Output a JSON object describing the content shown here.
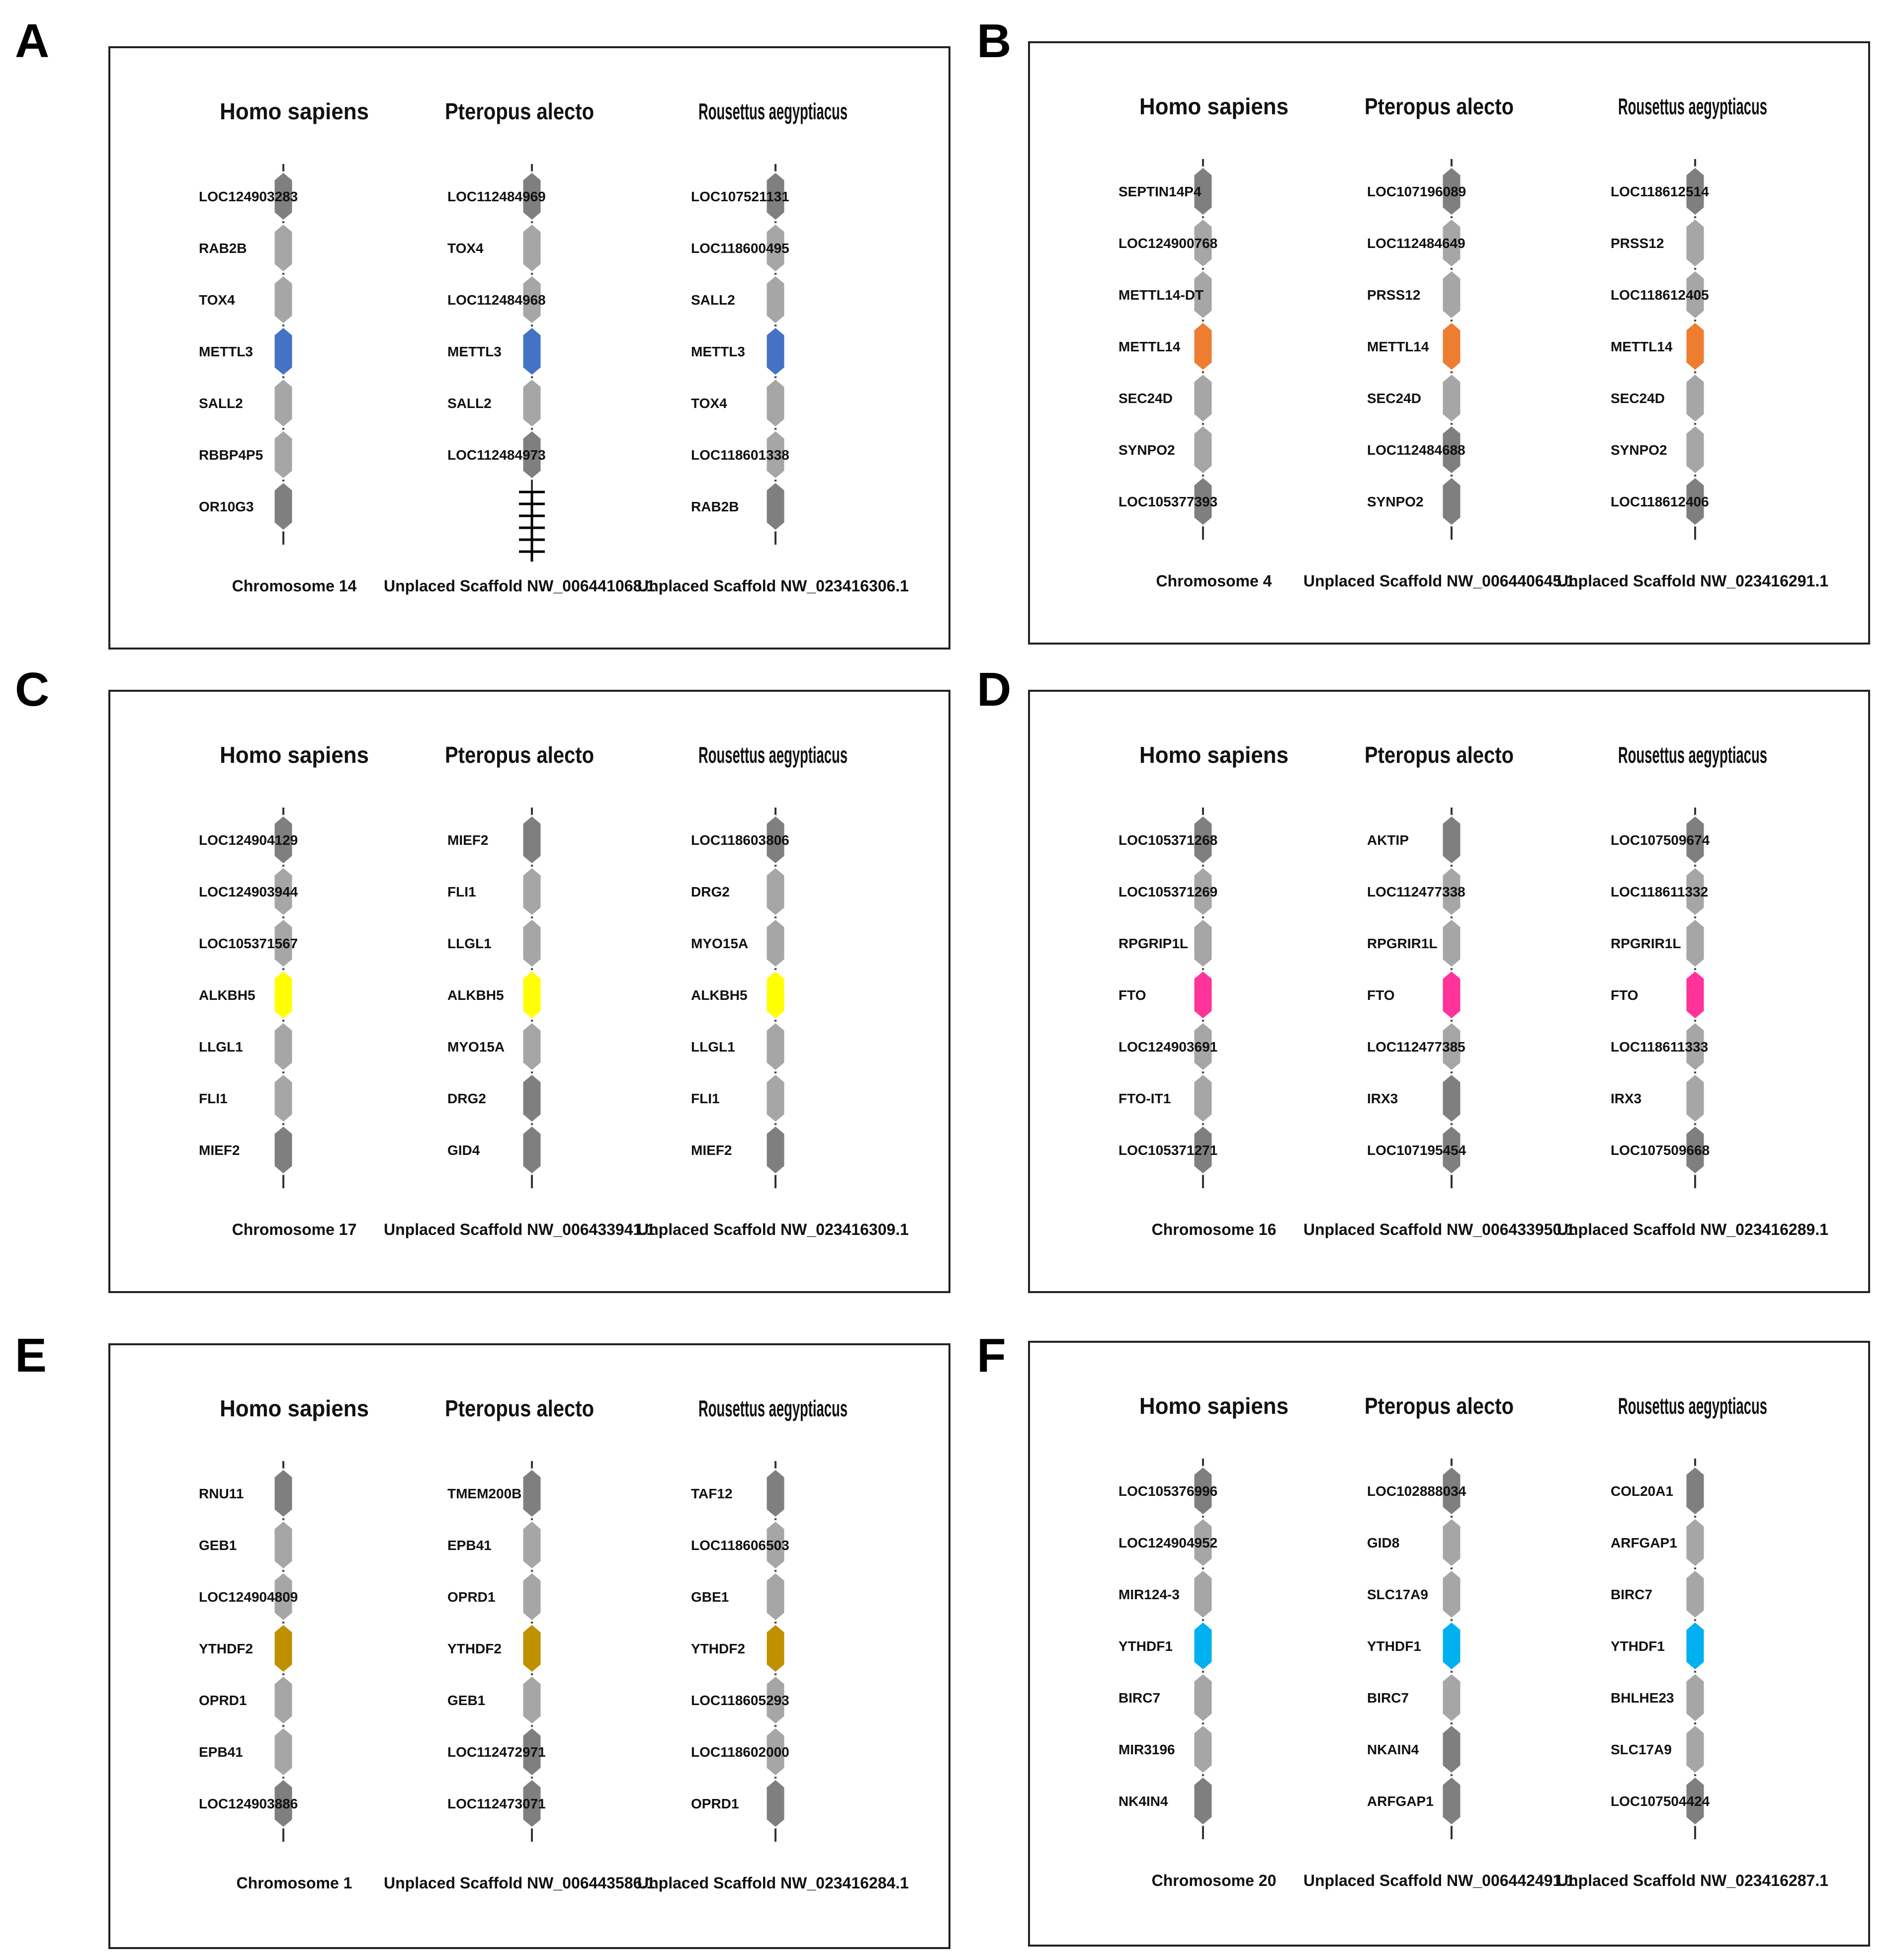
{
  "panels": [
    {
      "letter": "A",
      "color": "#4472c4",
      "columns": [
        {
          "species": "Homo sapiens",
          "location": "Chromosome 14",
          "genes": [
            {
              "name": "LOC124903283",
              "shade": "dark"
            },
            {
              "name": "RAB2B",
              "shade": "light"
            },
            {
              "name": "TOX4",
              "shade": "light"
            },
            {
              "name": "METTL3",
              "shade": "target"
            },
            {
              "name": "SALL2",
              "shade": "light"
            },
            {
              "name": "RBBP4P5",
              "shade": "light"
            },
            {
              "name": "OR10G3",
              "shade": "dark"
            }
          ]
        },
        {
          "species": "Pteropus alecto",
          "location": "Unplaced Scaffold NW_006441068.1",
          "scaffold_end": true,
          "genes": [
            {
              "name": "LOC112484969",
              "shade": "dark"
            },
            {
              "name": "TOX4",
              "shade": "light"
            },
            {
              "name": "LOC112484968",
              "shade": "light"
            },
            {
              "name": "METTL3",
              "shade": "target"
            },
            {
              "name": "SALL2",
              "shade": "light"
            },
            {
              "name": "LOC112484973",
              "shade": "dark"
            }
          ]
        },
        {
          "species": "Rousettus aegyptiacus",
          "location": "Unplaced Scaffold NW_023416306.1",
          "genes": [
            {
              "name": "LOC107521131",
              "shade": "dark"
            },
            {
              "name": "LOC118600495",
              "shade": "light"
            },
            {
              "name": "SALL2",
              "shade": "light"
            },
            {
              "name": "METTL3",
              "shade": "target"
            },
            {
              "name": "TOX4",
              "shade": "light"
            },
            {
              "name": "LOC118601338",
              "shade": "light"
            },
            {
              "name": "RAB2B",
              "shade": "dark"
            }
          ]
        }
      ]
    },
    {
      "letter": "B",
      "color": "#ed7d31",
      "columns": [
        {
          "species": "Homo sapiens",
          "location": "Chromosome 4",
          "genes": [
            {
              "name": "SEPTIN14P4",
              "shade": "dark"
            },
            {
              "name": "LOC124900768",
              "shade": "light"
            },
            {
              "name": "METTL14-DT",
              "shade": "light"
            },
            {
              "name": "METTL14",
              "shade": "target"
            },
            {
              "name": "SEC24D",
              "shade": "light"
            },
            {
              "name": "SYNPO2",
              "shade": "light"
            },
            {
              "name": "LOC105377393",
              "shade": "dark"
            }
          ]
        },
        {
          "species": "Pteropus alecto",
          "location": "Unplaced Scaffold NW_006440645.1",
          "genes": [
            {
              "name": "LOC107196089",
              "shade": "dark"
            },
            {
              "name": "LOC112484649",
              "shade": "light"
            },
            {
              "name": "PRSS12",
              "shade": "light"
            },
            {
              "name": "METTL14",
              "shade": "target"
            },
            {
              "name": "SEC24D",
              "shade": "light"
            },
            {
              "name": "LOC112484688",
              "shade": "dark"
            },
            {
              "name": "SYNPO2",
              "shade": "dark"
            }
          ]
        },
        {
          "species": "Rousettus aegyptiacus",
          "location": "Unplaced Scaffold NW_023416291.1",
          "genes": [
            {
              "name": "LOC118612514",
              "shade": "dark"
            },
            {
              "name": "PRSS12",
              "shade": "light"
            },
            {
              "name": "LOC118612405",
              "shade": "light"
            },
            {
              "name": "METTL14",
              "shade": "target"
            },
            {
              "name": "SEC24D",
              "shade": "light"
            },
            {
              "name": "SYNPO2",
              "shade": "light"
            },
            {
              "name": "LOC118612406",
              "shade": "dark"
            }
          ]
        }
      ]
    },
    {
      "letter": "C",
      "color": "#ffff00",
      "columns": [
        {
          "species": "Homo sapiens",
          "location": "Chromosome 17",
          "genes": [
            {
              "name": "LOC124904129",
              "shade": "dark"
            },
            {
              "name": "LOC124903944",
              "shade": "light"
            },
            {
              "name": "LOC105371567",
              "shade": "light"
            },
            {
              "name": "ALKBH5",
              "shade": "target"
            },
            {
              "name": "LLGL1",
              "shade": "light"
            },
            {
              "name": "FLI1",
              "shade": "light"
            },
            {
              "name": "MIEF2",
              "shade": "dark"
            }
          ]
        },
        {
          "species": "Pteropus alecto",
          "location": "Unplaced Scaffold NW_006433941.1",
          "genes": [
            {
              "name": "MIEF2",
              "shade": "dark"
            },
            {
              "name": "FLI1",
              "shade": "light"
            },
            {
              "name": "LLGL1",
              "shade": "light"
            },
            {
              "name": "ALKBH5",
              "shade": "target"
            },
            {
              "name": "MYO15A",
              "shade": "light"
            },
            {
              "name": "DRG2",
              "shade": "dark"
            },
            {
              "name": "GID4",
              "shade": "dark"
            }
          ]
        },
        {
          "species": "Rousettus aegyptiacus",
          "location": "Unplaced Scaffold NW_023416309.1",
          "genes": [
            {
              "name": "LOC118603806",
              "shade": "dark"
            },
            {
              "name": "DRG2",
              "shade": "light"
            },
            {
              "name": "MYO15A",
              "shade": "light"
            },
            {
              "name": "ALKBH5",
              "shade": "target"
            },
            {
              "name": "LLGL1",
              "shade": "light"
            },
            {
              "name": "FLI1",
              "shade": "light"
            },
            {
              "name": "MIEF2",
              "shade": "dark"
            }
          ]
        }
      ]
    },
    {
      "letter": "D",
      "color": "#ff3399",
      "columns": [
        {
          "species": "Homo sapiens",
          "location": "Chromosome 16",
          "genes": [
            {
              "name": "LOC105371268",
              "shade": "dark"
            },
            {
              "name": "LOC105371269",
              "shade": "light"
            },
            {
              "name": "RPGRIP1L",
              "shade": "light"
            },
            {
              "name": "FTO",
              "shade": "target"
            },
            {
              "name": "LOC124903691",
              "shade": "light"
            },
            {
              "name": "FTO-IT1",
              "shade": "light"
            },
            {
              "name": "LOC105371271",
              "shade": "dark"
            }
          ]
        },
        {
          "species": "Pteropus alecto",
          "location": "Unplaced Scaffold NW_006433950.1",
          "genes": [
            {
              "name": "AKTIP",
              "shade": "dark"
            },
            {
              "name": "LOC112477338",
              "shade": "light"
            },
            {
              "name": "RPGRIR1L",
              "shade": "light"
            },
            {
              "name": "FTO",
              "shade": "target"
            },
            {
              "name": "LOC112477385",
              "shade": "light"
            },
            {
              "name": "IRX3",
              "shade": "dark"
            },
            {
              "name": "LOC107195454",
              "shade": "dark"
            }
          ]
        },
        {
          "species": "Rousettus aegyptiacus",
          "location": "Unplaced Scaffold NW_023416289.1",
          "genes": [
            {
              "name": "LOC107509674",
              "shade": "dark"
            },
            {
              "name": "LOC118611332",
              "shade": "light"
            },
            {
              "name": "RPGRIR1L",
              "shade": "light"
            },
            {
              "name": "FTO",
              "shade": "target"
            },
            {
              "name": "LOC118611333",
              "shade": "light"
            },
            {
              "name": "IRX3",
              "shade": "light"
            },
            {
              "name": "LOC107509668",
              "shade": "dark"
            }
          ]
        }
      ]
    },
    {
      "letter": "E",
      "color": "#bf9000",
      "columns": [
        {
          "species": "Homo sapiens",
          "location": "Chromosome 1",
          "genes": [
            {
              "name": "RNU11",
              "shade": "dark"
            },
            {
              "name": "GEB1",
              "shade": "light"
            },
            {
              "name": "LOC124904809",
              "shade": "light"
            },
            {
              "name": "YTHDF2",
              "shade": "target"
            },
            {
              "name": "OPRD1",
              "shade": "light"
            },
            {
              "name": "EPB41",
              "shade": "light"
            },
            {
              "name": "LOC124903886",
              "shade": "dark"
            }
          ]
        },
        {
          "species": "Pteropus alecto",
          "location": "Unplaced Scaffold NW_006443586.1",
          "genes": [
            {
              "name": "TMEM200B",
              "shade": "dark"
            },
            {
              "name": "EPB41",
              "shade": "light"
            },
            {
              "name": "OPRD1",
              "shade": "light"
            },
            {
              "name": "YTHDF2",
              "shade": "target"
            },
            {
              "name": "GEB1",
              "shade": "light"
            },
            {
              "name": "LOC112472971",
              "shade": "dark"
            },
            {
              "name": "LOC112473071",
              "shade": "dark"
            }
          ]
        },
        {
          "species": "Rousettus aegyptiacus",
          "location": "Unplaced Scaffold NW_023416284.1",
          "genes": [
            {
              "name": "TAF12",
              "shade": "dark"
            },
            {
              "name": "LOC118606503",
              "shade": "light"
            },
            {
              "name": "GBE1",
              "shade": "light"
            },
            {
              "name": "YTHDF2",
              "shade": "target"
            },
            {
              "name": "LOC118605293",
              "shade": "light"
            },
            {
              "name": "LOC118602000",
              "shade": "light"
            },
            {
              "name": "OPRD1",
              "shade": "dark"
            }
          ]
        }
      ]
    },
    {
      "letter": "F",
      "color": "#00b0f0",
      "columns": [
        {
          "species": "Homo sapiens",
          "location": "Chromosome 20",
          "genes": [
            {
              "name": "LOC105376996",
              "shade": "dark"
            },
            {
              "name": "LOC124904952",
              "shade": "light"
            },
            {
              "name": "MIR124-3",
              "shade": "light"
            },
            {
              "name": "YTHDF1",
              "shade": "target"
            },
            {
              "name": "BIRC7",
              "shade": "light"
            },
            {
              "name": "MIR3196",
              "shade": "light"
            },
            {
              "name": "NK4IN4",
              "shade": "dark"
            }
          ]
        },
        {
          "species": "Pteropus alecto",
          "location": "Unplaced Scaffold NW_006442491.1",
          "genes": [
            {
              "name": "LOC102888034",
              "shade": "dark"
            },
            {
              "name": "GID8",
              "shade": "light"
            },
            {
              "name": "SLC17A9",
              "shade": "light"
            },
            {
              "name": "YTHDF1",
              "shade": "target"
            },
            {
              "name": "BIRC7",
              "shade": "light"
            },
            {
              "name": "NKAIN4",
              "shade": "dark"
            },
            {
              "name": "ARFGAP1",
              "shade": "dark"
            }
          ]
        },
        {
          "species": "Rousettus aegyptiacus",
          "location": "Unplaced Scaffold NW_023416287.1",
          "genes": [
            {
              "name": "COL20A1",
              "shade": "dark"
            },
            {
              "name": "ARFGAP1",
              "shade": "light"
            },
            {
              "name": "BIRC7",
              "shade": "light"
            },
            {
              "name": "YTHDF1",
              "shade": "target"
            },
            {
              "name": "BHLHE23",
              "shade": "light"
            },
            {
              "name": "SLC17A9",
              "shade": "light"
            },
            {
              "name": "LOC107504424",
              "shade": "dark"
            }
          ]
        }
      ]
    }
  ],
  "palette": {
    "dark": "#7f7f7f",
    "light": "#a6a6a6",
    "line": "#333333",
    "text": "#111111",
    "frame": "#222222"
  }
}
